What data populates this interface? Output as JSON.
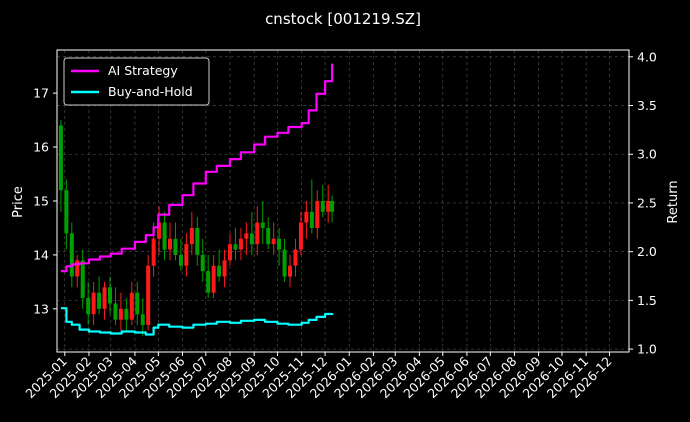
{
  "chart_data": {
    "type": "line",
    "title": "cnstock [001219.SZ]",
    "ylabel_left": "Price",
    "ylabel_right": "Return",
    "xlabel": "",
    "grid": true,
    "legend_position": "top-left",
    "background": "#000000",
    "colors": {
      "strategy": "#ff00ff",
      "buyhold": "#00ffff",
      "candle_up": "#ff1a1a",
      "candle_down": "#00a000",
      "grid": "#555555",
      "axis": "#ffffff"
    },
    "x_range": [
      "2024-12-22",
      "2026-12-26"
    ],
    "y_left_range": [
      12.2,
      17.8
    ],
    "y_left_ticks": [
      13,
      14,
      15,
      16,
      17
    ],
    "y_right_range": [
      0.97,
      4.07
    ],
    "y_right_ticks": [
      "1.0",
      "1.5",
      "2.0",
      "2.5",
      "3.0",
      "3.5",
      "4.0"
    ],
    "x_tick_labels": [
      "2025-01",
      "2025-02",
      "2025-03",
      "2025-04",
      "2025-05",
      "2025-06",
      "2025-07",
      "2025-08",
      "2025-09",
      "2025-10",
      "2025-11",
      "2025-12",
      "2026-01",
      "2026-02",
      "2026-03",
      "2026-04",
      "2026-05",
      "2026-06",
      "2026-07",
      "2026-08",
      "2026-09",
      "2026-10",
      "2026-11",
      "2026-12"
    ],
    "x_tick_dates": [
      "2025-01-01",
      "2025-02-01",
      "2025-03-01",
      "2025-04-01",
      "2025-05-01",
      "2025-06-01",
      "2025-07-01",
      "2025-08-01",
      "2025-09-01",
      "2025-10-01",
      "2025-11-01",
      "2025-12-01",
      "2026-01-01",
      "2026-02-01",
      "2026-03-01",
      "2026-04-01",
      "2026-05-01",
      "2026-06-01",
      "2026-07-01",
      "2026-08-01",
      "2026-09-01",
      "2026-10-01",
      "2026-11-01",
      "2026-12-01"
    ],
    "series": [
      {
        "name": "AI Strategy",
        "axis": "right",
        "x": [
          "2024-12-27",
          "2025-01-03",
          "2025-01-10",
          "2025-01-20",
          "2025-02-01",
          "2025-02-15",
          "2025-03-01",
          "2025-03-15",
          "2025-04-01",
          "2025-04-15",
          "2025-04-25",
          "2025-05-01",
          "2025-05-15",
          "2025-06-01",
          "2025-06-15",
          "2025-07-01",
          "2025-07-15",
          "2025-08-01",
          "2025-08-15",
          "2025-09-01",
          "2025-09-15",
          "2025-10-01",
          "2025-10-15",
          "2025-11-01",
          "2025-11-10",
          "2025-11-20",
          "2025-12-01",
          "2025-12-10"
        ],
        "values": [
          1.8,
          1.85,
          1.87,
          1.88,
          1.92,
          1.95,
          1.98,
          2.03,
          2.1,
          2.17,
          2.25,
          2.38,
          2.48,
          2.58,
          2.7,
          2.82,
          2.88,
          2.95,
          3.02,
          3.1,
          3.18,
          3.22,
          3.28,
          3.32,
          3.45,
          3.62,
          3.75,
          3.93
        ]
      },
      {
        "name": "Buy-and-Hold",
        "axis": "right",
        "x": [
          "2024-12-27",
          "2025-01-03",
          "2025-01-10",
          "2025-01-20",
          "2025-02-01",
          "2025-02-15",
          "2025-03-01",
          "2025-03-15",
          "2025-04-01",
          "2025-04-15",
          "2025-04-25",
          "2025-05-01",
          "2025-05-15",
          "2025-06-01",
          "2025-06-15",
          "2025-07-01",
          "2025-07-15",
          "2025-08-01",
          "2025-08-15",
          "2025-09-01",
          "2025-09-15",
          "2025-10-01",
          "2025-10-15",
          "2025-11-01",
          "2025-11-10",
          "2025-11-20",
          "2025-12-01",
          "2025-12-10"
        ],
        "values": [
          1.42,
          1.28,
          1.25,
          1.2,
          1.18,
          1.17,
          1.16,
          1.18,
          1.17,
          1.15,
          1.22,
          1.25,
          1.23,
          1.22,
          1.25,
          1.26,
          1.28,
          1.27,
          1.29,
          1.3,
          1.28,
          1.26,
          1.25,
          1.27,
          1.3,
          1.33,
          1.36,
          1.35
        ]
      },
      {
        "name": "",
        "type": "candlestick",
        "axis": "left",
        "x": [
          "2024-12-27",
          "2025-01-03",
          "2025-01-10",
          "2025-01-17",
          "2025-01-24",
          "2025-01-31",
          "2025-02-07",
          "2025-02-14",
          "2025-02-21",
          "2025-02-28",
          "2025-03-07",
          "2025-03-14",
          "2025-03-21",
          "2025-03-28",
          "2025-04-04",
          "2025-04-11",
          "2025-04-18",
          "2025-04-25",
          "2025-05-02",
          "2025-05-09",
          "2025-05-16",
          "2025-05-23",
          "2025-05-30",
          "2025-06-06",
          "2025-06-13",
          "2025-06-20",
          "2025-06-27",
          "2025-07-04",
          "2025-07-11",
          "2025-07-18",
          "2025-07-25",
          "2025-08-01",
          "2025-08-08",
          "2025-08-15",
          "2025-08-22",
          "2025-08-29",
          "2025-09-05",
          "2025-09-12",
          "2025-09-19",
          "2025-09-26",
          "2025-10-03",
          "2025-10-10",
          "2025-10-17",
          "2025-10-24",
          "2025-10-31",
          "2025-11-07",
          "2025-11-14",
          "2025-11-21",
          "2025-11-28",
          "2025-12-05",
          "2025-12-10"
        ],
        "open": [
          16.4,
          15.2,
          14.4,
          13.6,
          13.9,
          13.2,
          12.9,
          13.3,
          13.0,
          13.4,
          13.1,
          12.8,
          13.0,
          12.8,
          13.3,
          12.9,
          12.7,
          13.8,
          14.3,
          14.6,
          14.1,
          14.3,
          14.0,
          13.8,
          14.2,
          14.5,
          14.0,
          13.7,
          13.3,
          13.8,
          13.6,
          13.9,
          14.2,
          14.1,
          14.3,
          14.4,
          14.2,
          14.6,
          14.5,
          14.2,
          14.3,
          14.1,
          13.6,
          13.8,
          14.1,
          14.6,
          14.8,
          14.5,
          15.0,
          14.8,
          15.0
        ],
        "high": [
          16.5,
          15.4,
          14.6,
          14.0,
          14.1,
          13.5,
          13.5,
          13.6,
          13.5,
          13.6,
          13.4,
          13.3,
          13.2,
          13.5,
          13.5,
          13.2,
          14.0,
          14.6,
          14.9,
          14.8,
          14.6,
          14.6,
          14.3,
          14.4,
          14.8,
          14.7,
          14.3,
          14.0,
          14.0,
          14.1,
          14.1,
          14.4,
          14.5,
          14.5,
          14.6,
          14.8,
          14.9,
          15.0,
          14.7,
          14.6,
          14.5,
          14.3,
          14.0,
          14.3,
          14.8,
          15.0,
          15.4,
          15.2,
          15.3,
          15.3,
          15.1
        ],
        "low": [
          14.8,
          14.1,
          13.4,
          13.4,
          13.0,
          12.7,
          12.7,
          12.9,
          12.8,
          12.9,
          12.7,
          12.6,
          12.6,
          12.7,
          12.7,
          12.5,
          12.6,
          13.6,
          14.0,
          13.9,
          13.9,
          13.9,
          13.7,
          13.6,
          14.0,
          13.8,
          13.5,
          13.2,
          13.2,
          13.5,
          13.4,
          13.8,
          13.9,
          13.9,
          14.0,
          14.0,
          14.0,
          14.2,
          14.1,
          14.0,
          13.8,
          13.5,
          13.4,
          13.6,
          14.0,
          14.3,
          14.4,
          14.3,
          14.7,
          14.6,
          14.6
        ],
        "close": [
          15.2,
          14.4,
          13.6,
          13.9,
          13.2,
          12.9,
          13.3,
          13.0,
          13.4,
          13.1,
          12.8,
          13.0,
          12.8,
          13.3,
          12.9,
          12.7,
          13.8,
          14.3,
          14.6,
          14.1,
          14.3,
          14.0,
          13.8,
          14.2,
          14.5,
          14.0,
          13.7,
          13.3,
          13.8,
          13.6,
          13.9,
          14.2,
          14.1,
          14.3,
          14.4,
          14.2,
          14.6,
          14.5,
          14.2,
          14.3,
          14.1,
          13.6,
          13.8,
          14.1,
          14.6,
          14.8,
          14.5,
          15.0,
          14.8,
          15.0,
          14.8
        ]
      }
    ]
  }
}
